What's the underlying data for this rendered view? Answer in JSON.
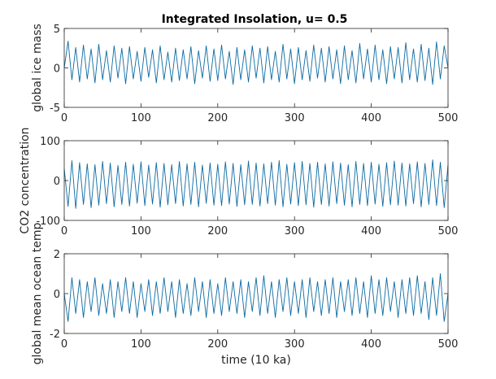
{
  "figure": {
    "title": "Integrated Insolation, u= 0.5",
    "line_color": "#0b6aa2"
  },
  "chart_data": [
    {
      "type": "line",
      "ylabel": "global ice mass",
      "xlabel": "",
      "xlim": [
        0,
        500
      ],
      "ylim": [
        -5,
        5
      ],
      "xticks": [
        0,
        100,
        200,
        300,
        400,
        500
      ],
      "yticks": [
        -5,
        0,
        5
      ],
      "xtick_labels": [
        "0",
        "100",
        "200",
        "300",
        "400",
        "500"
      ],
      "ytick_labels": [
        "-5",
        "0",
        "5"
      ],
      "series": [
        {
          "x": [
            0,
            5,
            10,
            15,
            20,
            25,
            30,
            35,
            40,
            45,
            50,
            55,
            60,
            65,
            70,
            75,
            80,
            85,
            90,
            95,
            100,
            105,
            110,
            115,
            120,
            125,
            130,
            135,
            140,
            145,
            150,
            155,
            160,
            165,
            170,
            175,
            180,
            185,
            190,
            195,
            200,
            205,
            210,
            215,
            220,
            225,
            230,
            235,
            240,
            245,
            250,
            255,
            260,
            265,
            270,
            275,
            280,
            285,
            290,
            295,
            300,
            305,
            310,
            315,
            320,
            325,
            330,
            335,
            340,
            345,
            350,
            355,
            360,
            365,
            370,
            375,
            380,
            385,
            390,
            395,
            400,
            405,
            410,
            415,
            420,
            425,
            430,
            435,
            440,
            445,
            450,
            455,
            460,
            465,
            470,
            475,
            480,
            485,
            490,
            495,
            500
          ],
          "y": [
            0,
            3.4,
            -1.5,
            2.6,
            -1.8,
            2.9,
            -1.4,
            2.4,
            -1.9,
            3.0,
            -1.5,
            2.2,
            -1.8,
            2.8,
            -1.3,
            2.5,
            -2.0,
            2.7,
            -1.4,
            2.1,
            -1.7,
            2.6,
            -1.2,
            2.3,
            -1.9,
            2.8,
            -1.5,
            2.0,
            -1.8,
            2.5,
            -1.6,
            2.3,
            -1.4,
            2.7,
            -2.0,
            2.2,
            -1.3,
            2.8,
            -1.7,
            2.4,
            -1.6,
            2.9,
            -1.4,
            2.1,
            -2.1,
            2.6,
            -1.5,
            2.3,
            -1.8,
            2.8,
            -1.3,
            2.5,
            -1.9,
            2.7,
            -1.5,
            2.1,
            -1.8,
            3.0,
            -1.4,
            2.4,
            -2.0,
            2.6,
            -1.5,
            2.2,
            -1.7,
            2.9,
            -1.3,
            2.5,
            -1.8,
            2.7,
            -1.4,
            2.3,
            -2.0,
            2.8,
            -1.5,
            2.2,
            -1.9,
            3.1,
            -1.4,
            2.4,
            -1.8,
            2.9,
            -1.5,
            2.3,
            -2.0,
            2.7,
            -1.4,
            2.6,
            -1.9,
            3.2,
            -1.5,
            2.4,
            -1.8,
            3.0,
            -1.6,
            2.5,
            -2.1,
            3.3,
            -1.4,
            2.8,
            0
          ]
        }
      ]
    },
    {
      "type": "line",
      "ylabel": "CO2 concentration",
      "xlabel": "",
      "xlim": [
        0,
        500
      ],
      "ylim": [
        -100,
        100
      ],
      "xticks": [
        0,
        100,
        200,
        300,
        400,
        500
      ],
      "yticks": [
        -100,
        0,
        100
      ],
      "xtick_labels": [
        "0",
        "100",
        "200",
        "300",
        "400",
        "500"
      ],
      "ytick_labels": [
        "-100",
        "0",
        "100"
      ],
      "series": [
        {
          "x": [
            0,
            5,
            10,
            15,
            20,
            25,
            30,
            35,
            40,
            45,
            50,
            55,
            60,
            65,
            70,
            75,
            80,
            85,
            90,
            95,
            100,
            105,
            110,
            115,
            120,
            125,
            130,
            135,
            140,
            145,
            150,
            155,
            160,
            165,
            170,
            175,
            180,
            185,
            190,
            195,
            200,
            205,
            210,
            215,
            220,
            225,
            230,
            235,
            240,
            245,
            250,
            255,
            260,
            265,
            270,
            275,
            280,
            285,
            290,
            295,
            300,
            305,
            310,
            315,
            320,
            325,
            330,
            335,
            340,
            345,
            350,
            355,
            360,
            365,
            370,
            375,
            380,
            385,
            390,
            395,
            400,
            405,
            410,
            415,
            420,
            425,
            430,
            435,
            440,
            445,
            450,
            455,
            460,
            465,
            470,
            475,
            480,
            485,
            490,
            495,
            500
          ],
          "y": [
            30,
            -65,
            50,
            -70,
            45,
            -60,
            42,
            -68,
            40,
            -62,
            48,
            -58,
            44,
            -66,
            38,
            -60,
            46,
            -64,
            41,
            -57,
            47,
            -63,
            39,
            -59,
            45,
            -67,
            43,
            -61,
            40,
            -58,
            48,
            -64,
            42,
            -60,
            46,
            -66,
            39,
            -57,
            44,
            -62,
            41,
            -63,
            47,
            -59,
            43,
            -65,
            40,
            -61,
            49,
            -60,
            44,
            -64,
            42,
            -58,
            46,
            -62,
            50,
            -66,
            41,
            -59,
            45,
            -63,
            48,
            -61,
            43,
            -67,
            46,
            -60,
            42,
            -64,
            47,
            -58,
            44,
            -62,
            40,
            -66,
            48,
            -60,
            43,
            -63,
            46,
            -59,
            41,
            -65,
            45,
            -61,
            49,
            -62,
            44,
            -64,
            42,
            -58,
            47,
            -66,
            43,
            -60,
            52,
            -63,
            46,
            -68,
            40
          ]
        }
      ]
    },
    {
      "type": "line",
      "ylabel": "global mean ocean temp",
      "xlabel": "time (10 ka)",
      "xlim": [
        0,
        500
      ],
      "ylim": [
        -2,
        2
      ],
      "xticks": [
        0,
        100,
        200,
        300,
        400,
        500
      ],
      "yticks": [
        -2,
        0,
        2
      ],
      "xtick_labels": [
        "0",
        "100",
        "200",
        "300",
        "400",
        "500"
      ],
      "ytick_labels": [
        "-2",
        "0",
        "2"
      ],
      "series": [
        {
          "x": [
            0,
            5,
            10,
            15,
            20,
            25,
            30,
            35,
            40,
            45,
            50,
            55,
            60,
            65,
            70,
            75,
            80,
            85,
            90,
            95,
            100,
            105,
            110,
            115,
            120,
            125,
            130,
            135,
            140,
            145,
            150,
            155,
            160,
            165,
            170,
            175,
            180,
            185,
            190,
            195,
            200,
            205,
            210,
            215,
            220,
            225,
            230,
            235,
            240,
            245,
            250,
            255,
            260,
            265,
            270,
            275,
            280,
            285,
            290,
            295,
            300,
            305,
            310,
            315,
            320,
            325,
            330,
            335,
            340,
            345,
            350,
            355,
            360,
            365,
            370,
            375,
            380,
            385,
            390,
            395,
            400,
            405,
            410,
            415,
            420,
            425,
            430,
            435,
            440,
            445,
            450,
            455,
            460,
            465,
            470,
            475,
            480,
            485,
            490,
            495,
            500
          ],
          "y": [
            0,
            -1.4,
            0.8,
            -1.0,
            0.7,
            -1.2,
            0.6,
            -0.9,
            0.8,
            -1.1,
            0.5,
            -1.0,
            0.7,
            -1.2,
            0.6,
            -0.9,
            0.8,
            -1.0,
            0.6,
            -1.2,
            0.5,
            -0.9,
            0.7,
            -1.1,
            0.6,
            -1.0,
            0.8,
            -0.9,
            0.6,
            -1.2,
            0.7,
            -1.0,
            0.5,
            -1.1,
            0.8,
            -0.9,
            0.6,
            -1.2,
            0.7,
            -1.0,
            0.5,
            -1.1,
            0.8,
            -0.9,
            0.6,
            -1.0,
            0.7,
            -1.2,
            0.6,
            -0.9,
            0.8,
            -1.1,
            0.9,
            -1.0,
            0.6,
            -1.2,
            0.7,
            -0.9,
            0.8,
            -1.1,
            0.6,
            -1.0,
            0.7,
            -1.2,
            0.8,
            -0.9,
            0.6,
            -1.1,
            0.7,
            -1.0,
            0.8,
            -1.2,
            0.6,
            -0.9,
            0.7,
            -1.1,
            0.8,
            -1.0,
            0.6,
            -1.2,
            0.9,
            -1.0,
            0.7,
            -1.1,
            0.8,
            -0.9,
            0.6,
            -1.2,
            0.7,
            -1.0,
            0.8,
            -1.1,
            0.9,
            -1.0,
            0.6,
            -1.3,
            0.8,
            -1.1,
            1.0,
            -1.4,
            0
          ]
        }
      ]
    }
  ]
}
